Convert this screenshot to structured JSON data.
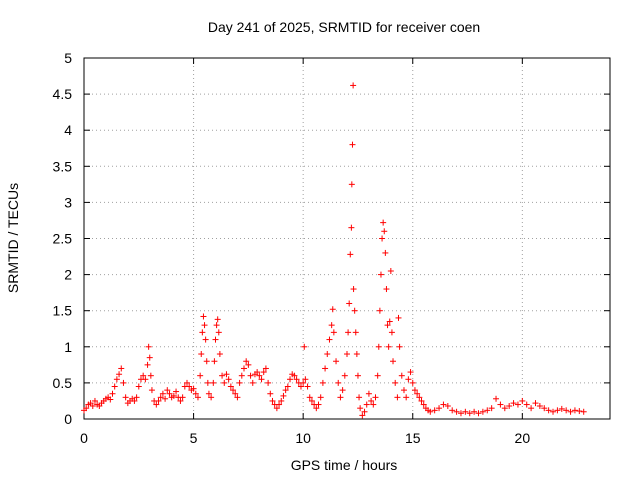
{
  "chart_data": {
    "type": "scatter",
    "title": "Day 241 of 2025, SRMTID for receiver coen",
    "xlabel": "GPS time / hours",
    "ylabel": "SRMTID / TECUs",
    "xlim": [
      0,
      24
    ],
    "ylim": [
      0,
      5
    ],
    "xticks": [
      0,
      5,
      10,
      15,
      20
    ],
    "yticks": [
      0,
      0.5,
      1,
      1.5,
      2,
      2.5,
      3,
      3.5,
      4,
      4.5,
      5
    ],
    "grid": true,
    "marker": "plus",
    "color": "#ff0000",
    "series": [
      {
        "name": "SRMTID",
        "points": [
          [
            0.0,
            0.12
          ],
          [
            0.1,
            0.15
          ],
          [
            0.2,
            0.2
          ],
          [
            0.3,
            0.22
          ],
          [
            0.4,
            0.18
          ],
          [
            0.5,
            0.25
          ],
          [
            0.6,
            0.2
          ],
          [
            0.7,
            0.18
          ],
          [
            0.8,
            0.22
          ],
          [
            0.9,
            0.25
          ],
          [
            1.0,
            0.28
          ],
          [
            1.1,
            0.3
          ],
          [
            1.2,
            0.27
          ],
          [
            1.3,
            0.35
          ],
          [
            1.4,
            0.45
          ],
          [
            1.5,
            0.55
          ],
          [
            1.6,
            0.62
          ],
          [
            1.7,
            0.7
          ],
          [
            1.8,
            0.5
          ],
          [
            1.9,
            0.3
          ],
          [
            2.0,
            0.22
          ],
          [
            2.1,
            0.25
          ],
          [
            2.2,
            0.28
          ],
          [
            2.3,
            0.25
          ],
          [
            2.4,
            0.3
          ],
          [
            2.5,
            0.45
          ],
          [
            2.6,
            0.55
          ],
          [
            2.7,
            0.6
          ],
          [
            2.8,
            0.55
          ],
          [
            2.9,
            0.75
          ],
          [
            2.95,
            1.0
          ],
          [
            3.0,
            0.85
          ],
          [
            3.05,
            0.6
          ],
          [
            3.1,
            0.4
          ],
          [
            3.2,
            0.25
          ],
          [
            3.3,
            0.2
          ],
          [
            3.4,
            0.25
          ],
          [
            3.5,
            0.3
          ],
          [
            3.6,
            0.35
          ],
          [
            3.7,
            0.28
          ],
          [
            3.8,
            0.4
          ],
          [
            3.9,
            0.35
          ],
          [
            4.0,
            0.3
          ],
          [
            4.1,
            0.32
          ],
          [
            4.2,
            0.38
          ],
          [
            4.3,
            0.3
          ],
          [
            4.4,
            0.25
          ],
          [
            4.5,
            0.3
          ],
          [
            4.6,
            0.45
          ],
          [
            4.7,
            0.5
          ],
          [
            4.8,
            0.45
          ],
          [
            4.9,
            0.4
          ],
          [
            5.0,
            0.42
          ],
          [
            5.1,
            0.35
          ],
          [
            5.2,
            0.3
          ],
          [
            5.3,
            0.6
          ],
          [
            5.35,
            0.9
          ],
          [
            5.4,
            1.2
          ],
          [
            5.45,
            1.42
          ],
          [
            5.5,
            1.3
          ],
          [
            5.55,
            1.1
          ],
          [
            5.6,
            0.8
          ],
          [
            5.65,
            0.5
          ],
          [
            5.7,
            0.35
          ],
          [
            5.8,
            0.3
          ],
          [
            5.9,
            0.5
          ],
          [
            5.95,
            0.8
          ],
          [
            6.0,
            1.1
          ],
          [
            6.05,
            1.3
          ],
          [
            6.1,
            1.38
          ],
          [
            6.15,
            1.2
          ],
          [
            6.2,
            0.9
          ],
          [
            6.3,
            0.6
          ],
          [
            6.4,
            0.5
          ],
          [
            6.5,
            0.62
          ],
          [
            6.6,
            0.55
          ],
          [
            6.7,
            0.45
          ],
          [
            6.8,
            0.4
          ],
          [
            6.9,
            0.35
          ],
          [
            7.0,
            0.3
          ],
          [
            7.1,
            0.5
          ],
          [
            7.2,
            0.6
          ],
          [
            7.3,
            0.7
          ],
          [
            7.4,
            0.8
          ],
          [
            7.5,
            0.75
          ],
          [
            7.6,
            0.6
          ],
          [
            7.7,
            0.5
          ],
          [
            7.8,
            0.62
          ],
          [
            7.9,
            0.65
          ],
          [
            8.0,
            0.6
          ],
          [
            8.1,
            0.55
          ],
          [
            8.2,
            0.65
          ],
          [
            8.3,
            0.7
          ],
          [
            8.4,
            0.5
          ],
          [
            8.5,
            0.35
          ],
          [
            8.6,
            0.25
          ],
          [
            8.7,
            0.2
          ],
          [
            8.8,
            0.15
          ],
          [
            8.9,
            0.2
          ],
          [
            9.0,
            0.25
          ],
          [
            9.1,
            0.32
          ],
          [
            9.2,
            0.4
          ],
          [
            9.3,
            0.45
          ],
          [
            9.4,
            0.55
          ],
          [
            9.5,
            0.62
          ],
          [
            9.6,
            0.6
          ],
          [
            9.7,
            0.55
          ],
          [
            9.8,
            0.5
          ],
          [
            9.9,
            0.45
          ],
          [
            10.0,
            0.5
          ],
          [
            10.05,
            1.0
          ],
          [
            10.1,
            0.55
          ],
          [
            10.2,
            0.45
          ],
          [
            10.3,
            0.3
          ],
          [
            10.4,
            0.25
          ],
          [
            10.5,
            0.2
          ],
          [
            10.6,
            0.15
          ],
          [
            10.7,
            0.2
          ],
          [
            10.8,
            0.3
          ],
          [
            10.9,
            0.5
          ],
          [
            11.0,
            0.7
          ],
          [
            11.1,
            0.9
          ],
          [
            11.2,
            1.1
          ],
          [
            11.3,
            1.3
          ],
          [
            11.35,
            1.52
          ],
          [
            11.4,
            1.2
          ],
          [
            11.5,
            0.8
          ],
          [
            11.6,
            0.5
          ],
          [
            11.7,
            0.3
          ],
          [
            11.8,
            0.4
          ],
          [
            11.9,
            0.6
          ],
          [
            12.0,
            0.9
          ],
          [
            12.05,
            1.2
          ],
          [
            12.1,
            1.6
          ],
          [
            12.15,
            2.28
          ],
          [
            12.2,
            2.65
          ],
          [
            12.22,
            3.25
          ],
          [
            12.25,
            3.8
          ],
          [
            12.28,
            4.62
          ],
          [
            12.3,
            1.8
          ],
          [
            12.35,
            1.5
          ],
          [
            12.4,
            1.2
          ],
          [
            12.45,
            0.9
          ],
          [
            12.5,
            0.6
          ],
          [
            12.55,
            0.3
          ],
          [
            12.6,
            0.15
          ],
          [
            12.7,
            0.05
          ],
          [
            12.8,
            0.1
          ],
          [
            12.9,
            0.2
          ],
          [
            13.0,
            0.35
          ],
          [
            13.1,
            0.25
          ],
          [
            13.2,
            0.2
          ],
          [
            13.3,
            0.3
          ],
          [
            13.4,
            0.6
          ],
          [
            13.45,
            1.0
          ],
          [
            13.5,
            1.5
          ],
          [
            13.55,
            2.0
          ],
          [
            13.6,
            2.5
          ],
          [
            13.65,
            2.72
          ],
          [
            13.7,
            2.6
          ],
          [
            13.75,
            2.3
          ],
          [
            13.8,
            1.8
          ],
          [
            13.85,
            1.3
          ],
          [
            13.9,
            1.0
          ],
          [
            13.95,
            1.35
          ],
          [
            14.0,
            2.05
          ],
          [
            14.05,
            1.2
          ],
          [
            14.1,
            0.8
          ],
          [
            14.2,
            0.5
          ],
          [
            14.3,
            0.3
          ],
          [
            14.35,
            1.4
          ],
          [
            14.4,
            1.0
          ],
          [
            14.5,
            0.6
          ],
          [
            14.6,
            0.4
          ],
          [
            14.7,
            0.3
          ],
          [
            14.8,
            0.55
          ],
          [
            14.9,
            0.65
          ],
          [
            15.0,
            0.5
          ],
          [
            15.1,
            0.4
          ],
          [
            15.2,
            0.35
          ],
          [
            15.3,
            0.3
          ],
          [
            15.4,
            0.25
          ],
          [
            15.5,
            0.2
          ],
          [
            15.6,
            0.15
          ],
          [
            15.7,
            0.12
          ],
          [
            15.8,
            0.1
          ],
          [
            16.0,
            0.12
          ],
          [
            16.2,
            0.15
          ],
          [
            16.4,
            0.2
          ],
          [
            16.6,
            0.18
          ],
          [
            16.8,
            0.12
          ],
          [
            17.0,
            0.1
          ],
          [
            17.2,
            0.08
          ],
          [
            17.4,
            0.1
          ],
          [
            17.6,
            0.08
          ],
          [
            17.8,
            0.1
          ],
          [
            18.0,
            0.08
          ],
          [
            18.2,
            0.1
          ],
          [
            18.4,
            0.12
          ],
          [
            18.6,
            0.15
          ],
          [
            18.8,
            0.28
          ],
          [
            19.0,
            0.2
          ],
          [
            19.2,
            0.15
          ],
          [
            19.4,
            0.18
          ],
          [
            19.6,
            0.22
          ],
          [
            19.8,
            0.2
          ],
          [
            20.0,
            0.25
          ],
          [
            20.2,
            0.2
          ],
          [
            20.4,
            0.15
          ],
          [
            20.6,
            0.22
          ],
          [
            20.8,
            0.18
          ],
          [
            21.0,
            0.15
          ],
          [
            21.2,
            0.12
          ],
          [
            21.4,
            0.1
          ],
          [
            21.6,
            0.12
          ],
          [
            21.8,
            0.14
          ],
          [
            22.0,
            0.12
          ],
          [
            22.2,
            0.1
          ],
          [
            22.4,
            0.12
          ],
          [
            22.6,
            0.11
          ],
          [
            22.8,
            0.1
          ]
        ]
      }
    ]
  }
}
